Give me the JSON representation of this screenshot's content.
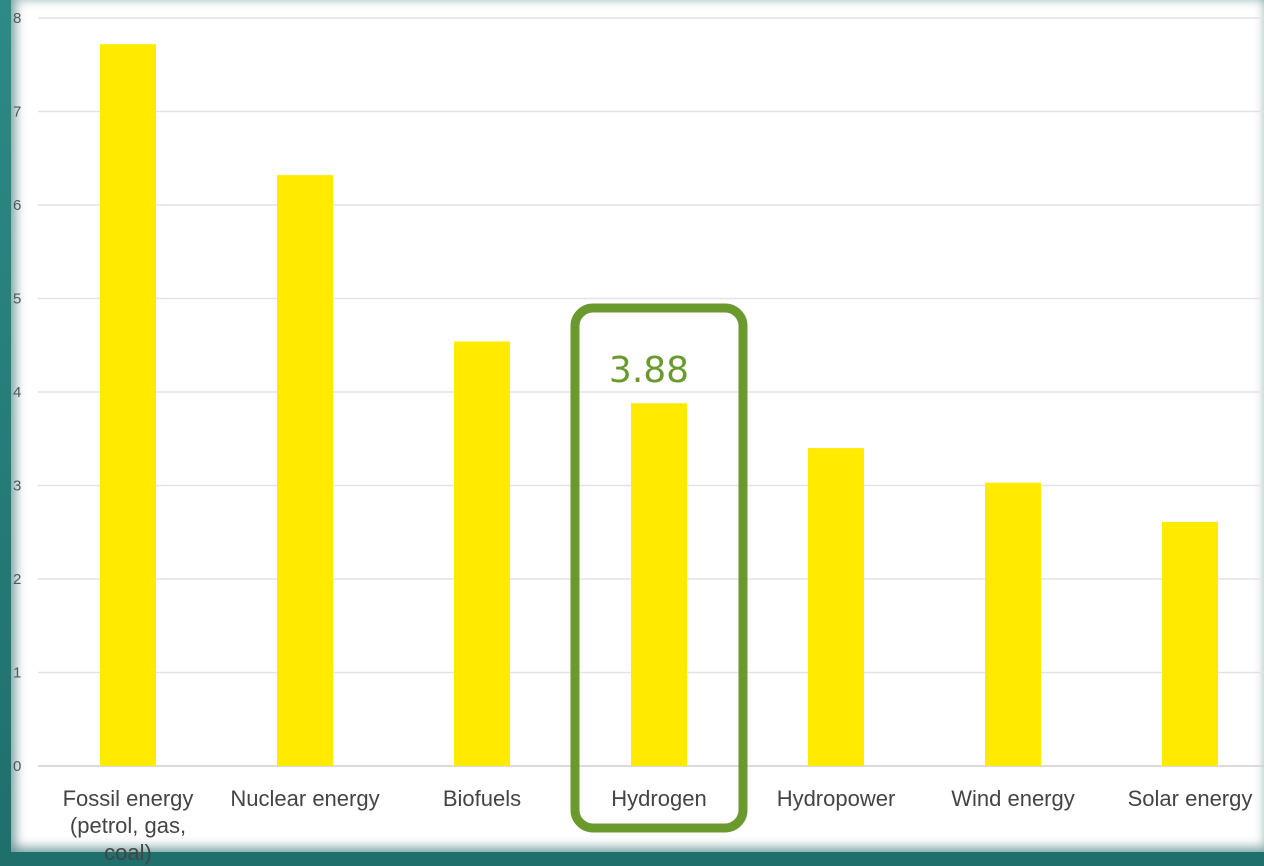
{
  "chart_data": {
    "type": "bar",
    "categories": [
      [
        "Fossil energy",
        "(petrol, gas,",
        "coal)"
      ],
      [
        "Nuclear energy"
      ],
      [
        "Biofuels"
      ],
      [
        "Hydrogen"
      ],
      [
        "Hydropower"
      ],
      [
        "Wind energy"
      ],
      [
        "Solar energy"
      ]
    ],
    "values": [
      7.72,
      6.32,
      4.54,
      3.88,
      3.4,
      3.03,
      2.61
    ],
    "ylim": [
      0,
      8
    ],
    "yticks": [
      "0",
      "1",
      "2",
      "3",
      "4",
      "5",
      "6",
      "7",
      "8"
    ],
    "grid": true,
    "bar_color": "#ffea00",
    "highlight": {
      "category_index": 3,
      "label": "3.88",
      "color": "#6a9a2e"
    }
  }
}
